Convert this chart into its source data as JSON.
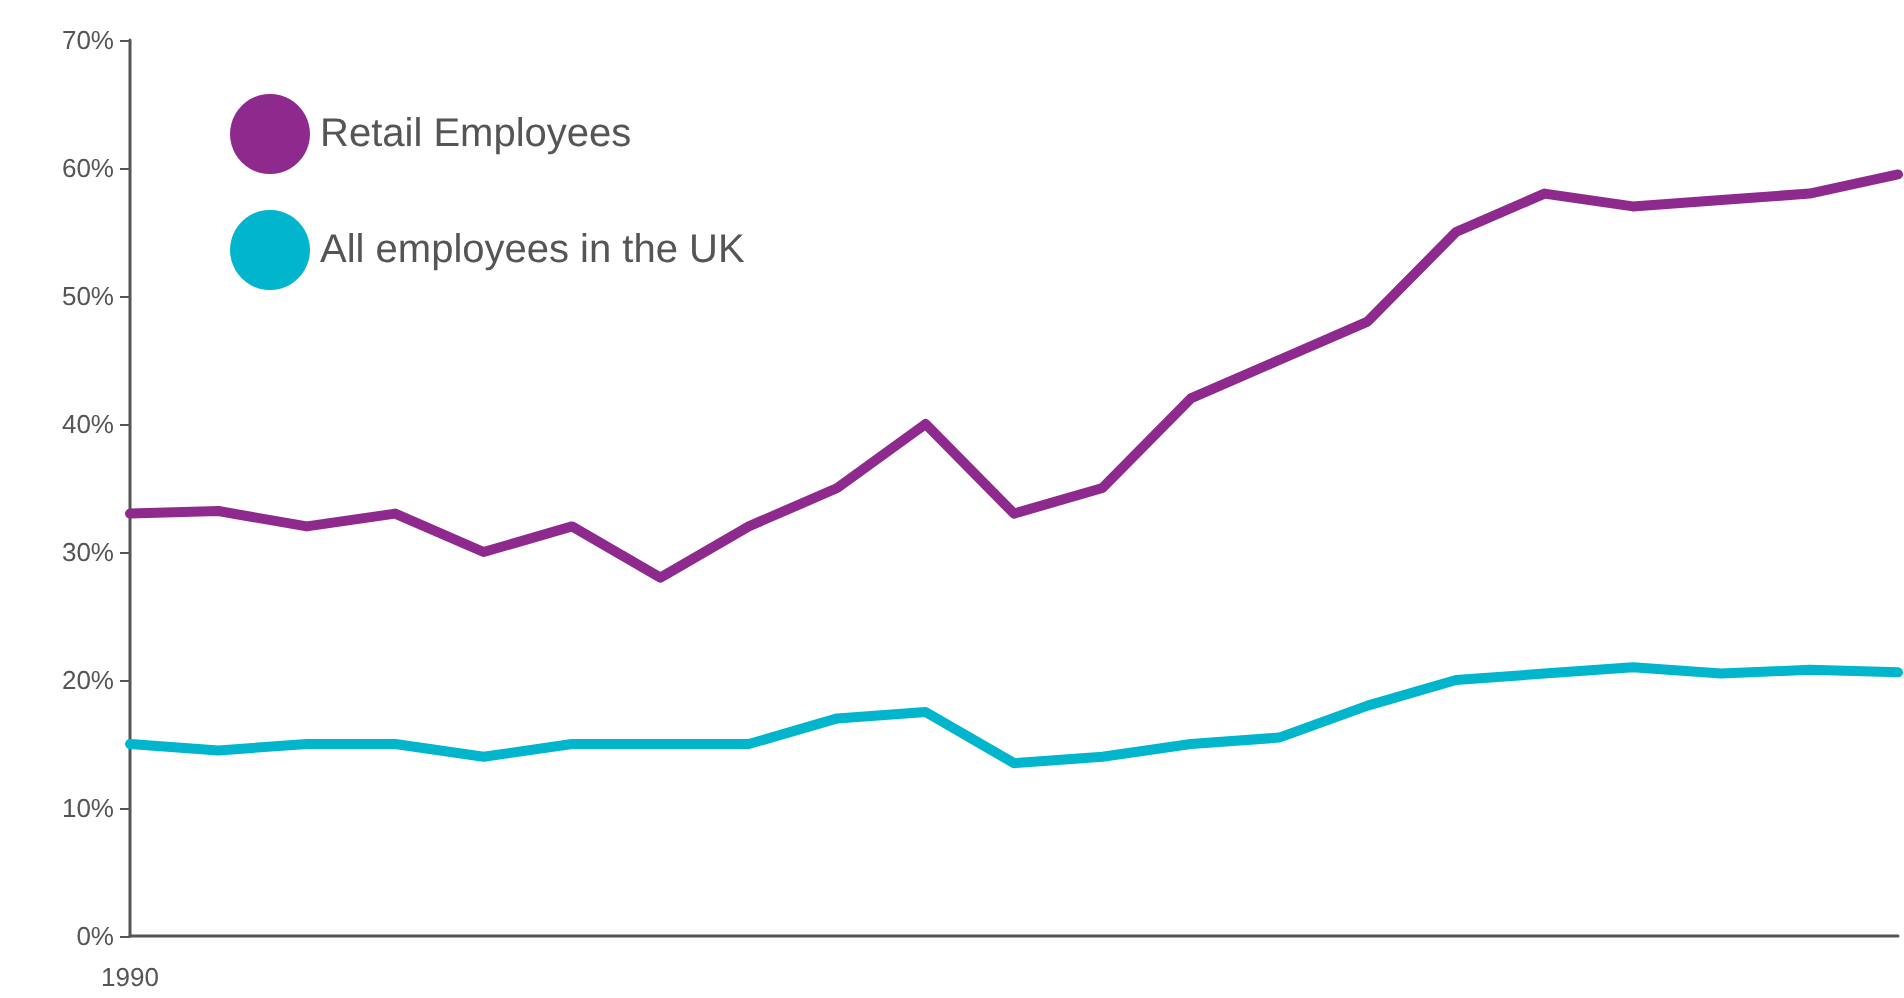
{
  "chart_data": {
    "type": "line",
    "categories": [
      "1990",
      null,
      null,
      null,
      null,
      null,
      null,
      null,
      null,
      null,
      null,
      null,
      null,
      null,
      null,
      null,
      null,
      null,
      null,
      null,
      null
    ],
    "series": [
      {
        "name": "Retail Employees",
        "color": "#8e2a8e",
        "values": [
          33,
          33.2,
          32,
          33,
          30,
          32,
          28,
          32,
          35,
          40,
          33,
          35,
          42,
          45,
          48,
          55,
          58,
          57,
          57.5,
          58,
          59.5
        ]
      },
      {
        "name": "All employees in the UK",
        "color": "#00b5cc",
        "values": [
          15,
          14.5,
          15,
          15,
          14,
          15,
          15,
          15,
          17,
          17.5,
          13.5,
          14,
          15,
          15.5,
          18,
          20,
          20.5,
          21,
          20.5,
          20.8,
          20.6
        ]
      }
    ],
    "ylim": [
      0,
      70
    ],
    "yticks": [
      {
        "value": 0,
        "label": "0%"
      },
      {
        "value": 10,
        "label": "10%"
      },
      {
        "value": 20,
        "label": "20%"
      },
      {
        "value": 30,
        "label": "30%"
      },
      {
        "value": 40,
        "label": "40%"
      },
      {
        "value": 50,
        "label": "50%"
      },
      {
        "value": 60,
        "label": "60%"
      },
      {
        "value": 70,
        "label": "70%"
      }
    ],
    "grid": false,
    "legend": "top left",
    "marker": "none",
    "line_style": "solid"
  }
}
